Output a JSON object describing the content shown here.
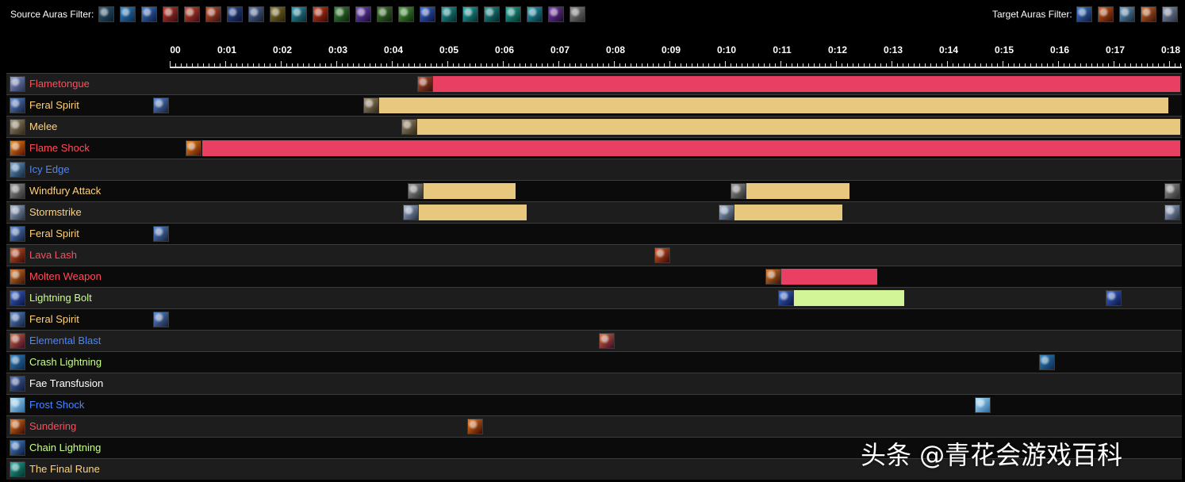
{
  "filters": {
    "source_label": "Source Auras Filter:",
    "target_label": "Target Auras Filter:",
    "source_icons": [
      {
        "name": "frost-orb-icon",
        "c1": "#2f5b7a",
        "c2": "#0b1d2a"
      },
      {
        "name": "crash-lightning-icon",
        "c1": "#2d86c8",
        "c2": "#0d2948"
      },
      {
        "name": "blue-bolt-icon",
        "c1": "#3c7ad8",
        "c2": "#0d1a3a"
      },
      {
        "name": "flame-swirl-icon",
        "c1": "#c43b2a",
        "c2": "#3a0a12"
      },
      {
        "name": "flame-swirl-icon",
        "c1": "#d14a2e",
        "c2": "#3f0d16"
      },
      {
        "name": "flame-swirl-icon",
        "c1": "#c9532f",
        "c2": "#3a1010"
      },
      {
        "name": "storm-icon",
        "c1": "#2a4fa0",
        "c2": "#0a1230"
      },
      {
        "name": "wolf-icon",
        "c1": "#5a72a8",
        "c2": "#141c30"
      },
      {
        "name": "earth-icon",
        "c1": "#8a7a2a",
        "c2": "#2a220a"
      },
      {
        "name": "wind-icon",
        "c1": "#2e9ab0",
        "c2": "#0a2a34"
      },
      {
        "name": "flame-shock-icon",
        "c1": "#d43a1a",
        "c2": "#3a0a04"
      },
      {
        "name": "nature-icon",
        "c1": "#3a8a3a",
        "c2": "#0a260a"
      },
      {
        "name": "arcane-icon",
        "c1": "#7a4ac8",
        "c2": "#1a0a34"
      },
      {
        "name": "green-totem-icon",
        "c1": "#3f7a2e",
        "c2": "#0e240a"
      },
      {
        "name": "green-bolt-icon",
        "c1": "#4aa03a",
        "c2": "#0e2a0a"
      },
      {
        "name": "lightning-bolt-icon",
        "c1": "#3a6ad8",
        "c2": "#0a1440"
      },
      {
        "name": "teal-spiral-icon",
        "c1": "#1fa6a6",
        "c2": "#062a2a"
      },
      {
        "name": "teal-spiral-icon",
        "c1": "#22b0b0",
        "c2": "#072c2c"
      },
      {
        "name": "teal-spiral-icon",
        "c1": "#1e9c9c",
        "c2": "#062626"
      },
      {
        "name": "teal-feather-icon",
        "c1": "#1fb0a0",
        "c2": "#06302a"
      },
      {
        "name": "teal-feather-icon",
        "c1": "#26a8c0",
        "c2": "#062a34"
      },
      {
        "name": "purple-rune-icon",
        "c1": "#7a3ab0",
        "c2": "#1c0a2e"
      },
      {
        "name": "windfury-icon",
        "c1": "#8a8a8a",
        "c2": "#2a2a2a"
      }
    ],
    "target_icons": [
      {
        "name": "lightning-bolt-icon",
        "c1": "#3c7ad8",
        "c2": "#0d1a3a"
      },
      {
        "name": "flame-shock-icon",
        "c1": "#d85a1a",
        "c2": "#3a1004"
      },
      {
        "name": "icy-edge-icon",
        "c1": "#6aa0c8",
        "c2": "#14283a"
      },
      {
        "name": "molten-weapon-icon",
        "c1": "#d86a2a",
        "c2": "#3a1408"
      },
      {
        "name": "frost-orb-icon",
        "c1": "#8a9ab8",
        "c2": "#2a3040"
      }
    ]
  },
  "timeline": {
    "tick_labels": [
      "00",
      "0:01",
      "0:02",
      "0:03",
      "0:04",
      "0:05",
      "0:06",
      "0:07",
      "0:08",
      "0:09",
      "0:10",
      "0:11",
      "0:12",
      "0:13",
      "0:14",
      "0:15",
      "0:16",
      "0:17",
      "0:18"
    ],
    "max_seconds": 18.2
  },
  "colors": {
    "red_bar": "#e83f62",
    "tan_bar": "#e8c87e",
    "green_bar": "#d2f598",
    "red_text": "#ff4d5a",
    "tan_text": "#ffd27a",
    "blue_text": "#4a86ff",
    "green_text": "#c8ff8a"
  },
  "rows": [
    {
      "name": "Flametongue",
      "color": "#ff4d5a",
      "icon": "flametongue-icon",
      "c1": "#8a9ad8",
      "c2": "#2a3050",
      "casts": [
        {
          "t": 4.45,
          "icon": "flametongue-cast-icon",
          "c1": "#c05030",
          "c2": "#301008"
        }
      ],
      "bars": [
        {
          "start": 4.74,
          "end": 18.2,
          "color": "#e83f62"
        }
      ]
    },
    {
      "name": "Feral Spirit",
      "color": "#ffd27a",
      "icon": "feral-spirit-icon",
      "c1": "#5a8ad8",
      "c2": "#14203a",
      "casts": [
        {
          "t": -0.3,
          "icon": "feral-spirit-cast-icon",
          "c1": "#5a8ad8",
          "c2": "#14203a"
        },
        {
          "t": 3.48,
          "icon": "wolf-cast-icon",
          "c1": "#a09070",
          "c2": "#302818"
        }
      ],
      "bars": [
        {
          "start": 3.77,
          "end": 17.99,
          "color": "#e8c87e"
        }
      ]
    },
    {
      "name": "Melee",
      "color": "#ffd27a",
      "icon": "melee-icon",
      "c1": "#a09070",
      "c2": "#302818",
      "casts": [
        {
          "t": 4.17,
          "icon": "melee-cast-icon",
          "c1": "#a09070",
          "c2": "#302818"
        }
      ],
      "bars": [
        {
          "start": 4.46,
          "end": 18.2,
          "color": "#e8c87e"
        }
      ]
    },
    {
      "name": "Flame Shock",
      "color": "#ff4d5a",
      "icon": "flame-shock-icon",
      "c1": "#f08a1a",
      "c2": "#5a1004",
      "casts": [
        {
          "t": 0.29,
          "icon": "flame-shock-cast-icon",
          "c1": "#f08a1a",
          "c2": "#5a1004"
        }
      ],
      "bars": [
        {
          "start": 0.58,
          "end": 18.2,
          "color": "#e83f62"
        }
      ]
    },
    {
      "name": "Icy Edge",
      "color": "#4a86ff",
      "icon": "icy-edge-icon",
      "c1": "#6aa0d8",
      "c2": "#14283a",
      "casts": [],
      "bars": []
    },
    {
      "name": "Windfury Attack",
      "color": "#ffd27a",
      "icon": "windfury-attack-icon",
      "c1": "#9a9a9a",
      "c2": "#2a2a2a",
      "casts": [
        {
          "t": 4.28,
          "icon": "windfury-cast-icon",
          "c1": "#9a9a9a",
          "c2": "#2a2a2a"
        },
        {
          "t": 10.1,
          "icon": "windfury-cast-icon",
          "c1": "#9a9a9a",
          "c2": "#2a2a2a"
        },
        {
          "t": 18.06,
          "icon": "windfury-cast-icon",
          "c1": "#9a9a9a",
          "c2": "#2a2a2a"
        }
      ],
      "bars": [
        {
          "start": 4.57,
          "end": 6.23,
          "color": "#e8c87e"
        },
        {
          "start": 10.38,
          "end": 12.24,
          "color": "#e8c87e"
        }
      ]
    },
    {
      "name": "Stormstrike",
      "color": "#ffd27a",
      "icon": "stormstrike-icon",
      "c1": "#a0b8d8",
      "c2": "#283040",
      "casts": [
        {
          "t": 4.2,
          "icon": "stormstrike-cast-icon",
          "c1": "#a0b8d8",
          "c2": "#283040"
        },
        {
          "t": 9.88,
          "icon": "stormstrike-cast-icon",
          "c1": "#a0b8d8",
          "c2": "#283040"
        },
        {
          "t": 17.94,
          "icon": "stormstrike-cast-icon",
          "c1": "#a0b8d8",
          "c2": "#283040"
        }
      ],
      "bars": [
        {
          "start": 4.49,
          "end": 6.43,
          "color": "#e8c87e"
        },
        {
          "start": 10.17,
          "end": 12.11,
          "color": "#e8c87e"
        }
      ]
    },
    {
      "name": "Feral Spirit",
      "color": "#ffd27a",
      "icon": "feral-spirit-icon",
      "c1": "#5a8ad8",
      "c2": "#14203a",
      "casts": [
        {
          "t": -0.3,
          "icon": "feral-spirit-cast-icon",
          "c1": "#5a8ad8",
          "c2": "#14203a"
        }
      ],
      "bars": []
    },
    {
      "name": "Lava Lash",
      "color": "#ff4d5a",
      "icon": "lava-lash-icon",
      "c1": "#d85a2a",
      "c2": "#3a0a04",
      "casts": [
        {
          "t": 8.73,
          "icon": "lava-lash-cast-icon",
          "c1": "#d85a2a",
          "c2": "#3a0a04"
        }
      ],
      "bars": []
    },
    {
      "name": "Molten Weapon",
      "color": "#ff4d5a",
      "icon": "molten-weapon-icon",
      "c1": "#e07a2a",
      "c2": "#3a1404",
      "casts": [
        {
          "t": 10.73,
          "icon": "molten-weapon-cast-icon",
          "c1": "#e07a2a",
          "c2": "#3a1404"
        }
      ],
      "bars": [
        {
          "start": 11.02,
          "end": 12.75,
          "color": "#e83f62"
        }
      ]
    },
    {
      "name": "Lightning Bolt",
      "color": "#c8ff8a",
      "icon": "lightning-bolt-icon",
      "c1": "#3a6ad8",
      "c2": "#0a1440",
      "casts": [
        {
          "t": 10.95,
          "icon": "lightning-bolt-cast-icon",
          "c1": "#3a6ad8",
          "c2": "#0a1440"
        },
        {
          "t": 16.86,
          "icon": "lightning-bolt-cast-icon",
          "c1": "#3a6ad8",
          "c2": "#0a1440"
        }
      ],
      "bars": [
        {
          "start": 11.24,
          "end": 13.23,
          "color": "#d2f598"
        }
      ]
    },
    {
      "name": "Feral Spirit",
      "color": "#ffd27a",
      "icon": "feral-spirit-icon",
      "c1": "#5a8ad8",
      "c2": "#14203a",
      "casts": [
        {
          "t": -0.3,
          "icon": "feral-spirit-cast-icon",
          "c1": "#5a8ad8",
          "c2": "#14203a"
        }
      ],
      "bars": []
    },
    {
      "name": "Elemental Blast",
      "color": "#4a86ff",
      "icon": "elemental-blast-icon",
      "c1": "#d86a3a",
      "c2": "#3a0a2a",
      "casts": [
        {
          "t": 7.73,
          "icon": "elemental-blast-cast-icon",
          "c1": "#d86a3a",
          "c2": "#3a0a2a"
        }
      ],
      "bars": []
    },
    {
      "name": "Crash Lightning",
      "color": "#c8ff8a",
      "icon": "crash-lightning-icon",
      "c1": "#2d86c8",
      "c2": "#0d2948",
      "casts": [
        {
          "t": 15.65,
          "icon": "crash-lightning-cast-icon",
          "c1": "#2d86c8",
          "c2": "#0d2948"
        }
      ],
      "bars": []
    },
    {
      "name": "Fae Transfusion",
      "color": "#ffffff",
      "icon": "fae-transfusion-icon",
      "c1": "#4a6ab8",
      "c2": "#101a38",
      "casts": [],
      "bars": []
    },
    {
      "name": "Frost Shock",
      "color": "#4a86ff",
      "icon": "frost-shock-icon",
      "c1": "#aee4ff",
      "c2": "#2a6aa0",
      "casts": [
        {
          "t": 14.5,
          "icon": "frost-shock-cast-icon",
          "c1": "#aee4ff",
          "c2": "#2a6aa0"
        }
      ],
      "bars": []
    },
    {
      "name": "Sundering",
      "color": "#ff4d5a",
      "icon": "sundering-icon",
      "c1": "#f07a1a",
      "c2": "#3a0a04",
      "casts": [
        {
          "t": 5.35,
          "icon": "sundering-cast-icon",
          "c1": "#f07a1a",
          "c2": "#3a0a04"
        }
      ],
      "bars": []
    },
    {
      "name": "Chain Lightning",
      "color": "#c8ff8a",
      "icon": "chain-lightning-icon",
      "c1": "#4a8ad8",
      "c2": "#0a1a3a",
      "casts": [],
      "bars": []
    },
    {
      "name": "The Final Rune",
      "color": "#ffd27a",
      "icon": "final-rune-icon",
      "c1": "#1fb0a0",
      "c2": "#06302a",
      "casts": [],
      "bars": []
    }
  ],
  "watermark": "头条 @青花会游戏百科"
}
